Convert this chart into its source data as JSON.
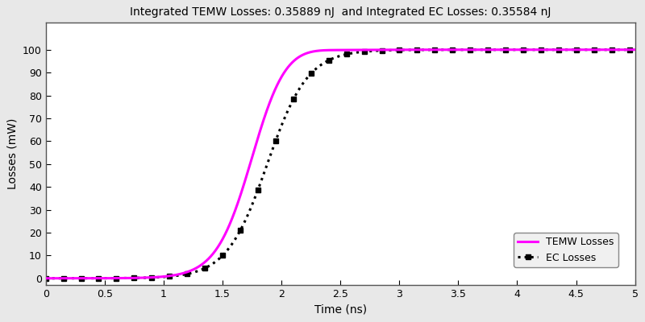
{
  "title": "Integrated TEMW Losses: 0.35889 nJ  and Integrated EC Losses: 0.35584 nJ",
  "xlabel": "Time (ns)",
  "ylabel": "Losses (mW)",
  "xlim": [
    0,
    5
  ],
  "ylim": [
    -3,
    112
  ],
  "yticks": [
    0,
    10,
    20,
    30,
    40,
    50,
    60,
    70,
    80,
    90,
    100
  ],
  "xticks": [
    0,
    0.5,
    1.0,
    1.5,
    2.0,
    2.5,
    3.0,
    3.5,
    4.0,
    4.5,
    5.0
  ],
  "temw_color": "#ff00ff",
  "ec_color": "#000000",
  "temw_linewidth": 2.2,
  "ec_linewidth": 2.2,
  "background_color": "#e8e8e8",
  "plot_bg_color": "#ffffff",
  "title_fontsize": 10,
  "label_fontsize": 10,
  "tick_fontsize": 9,
  "legend_fontsize": 9
}
